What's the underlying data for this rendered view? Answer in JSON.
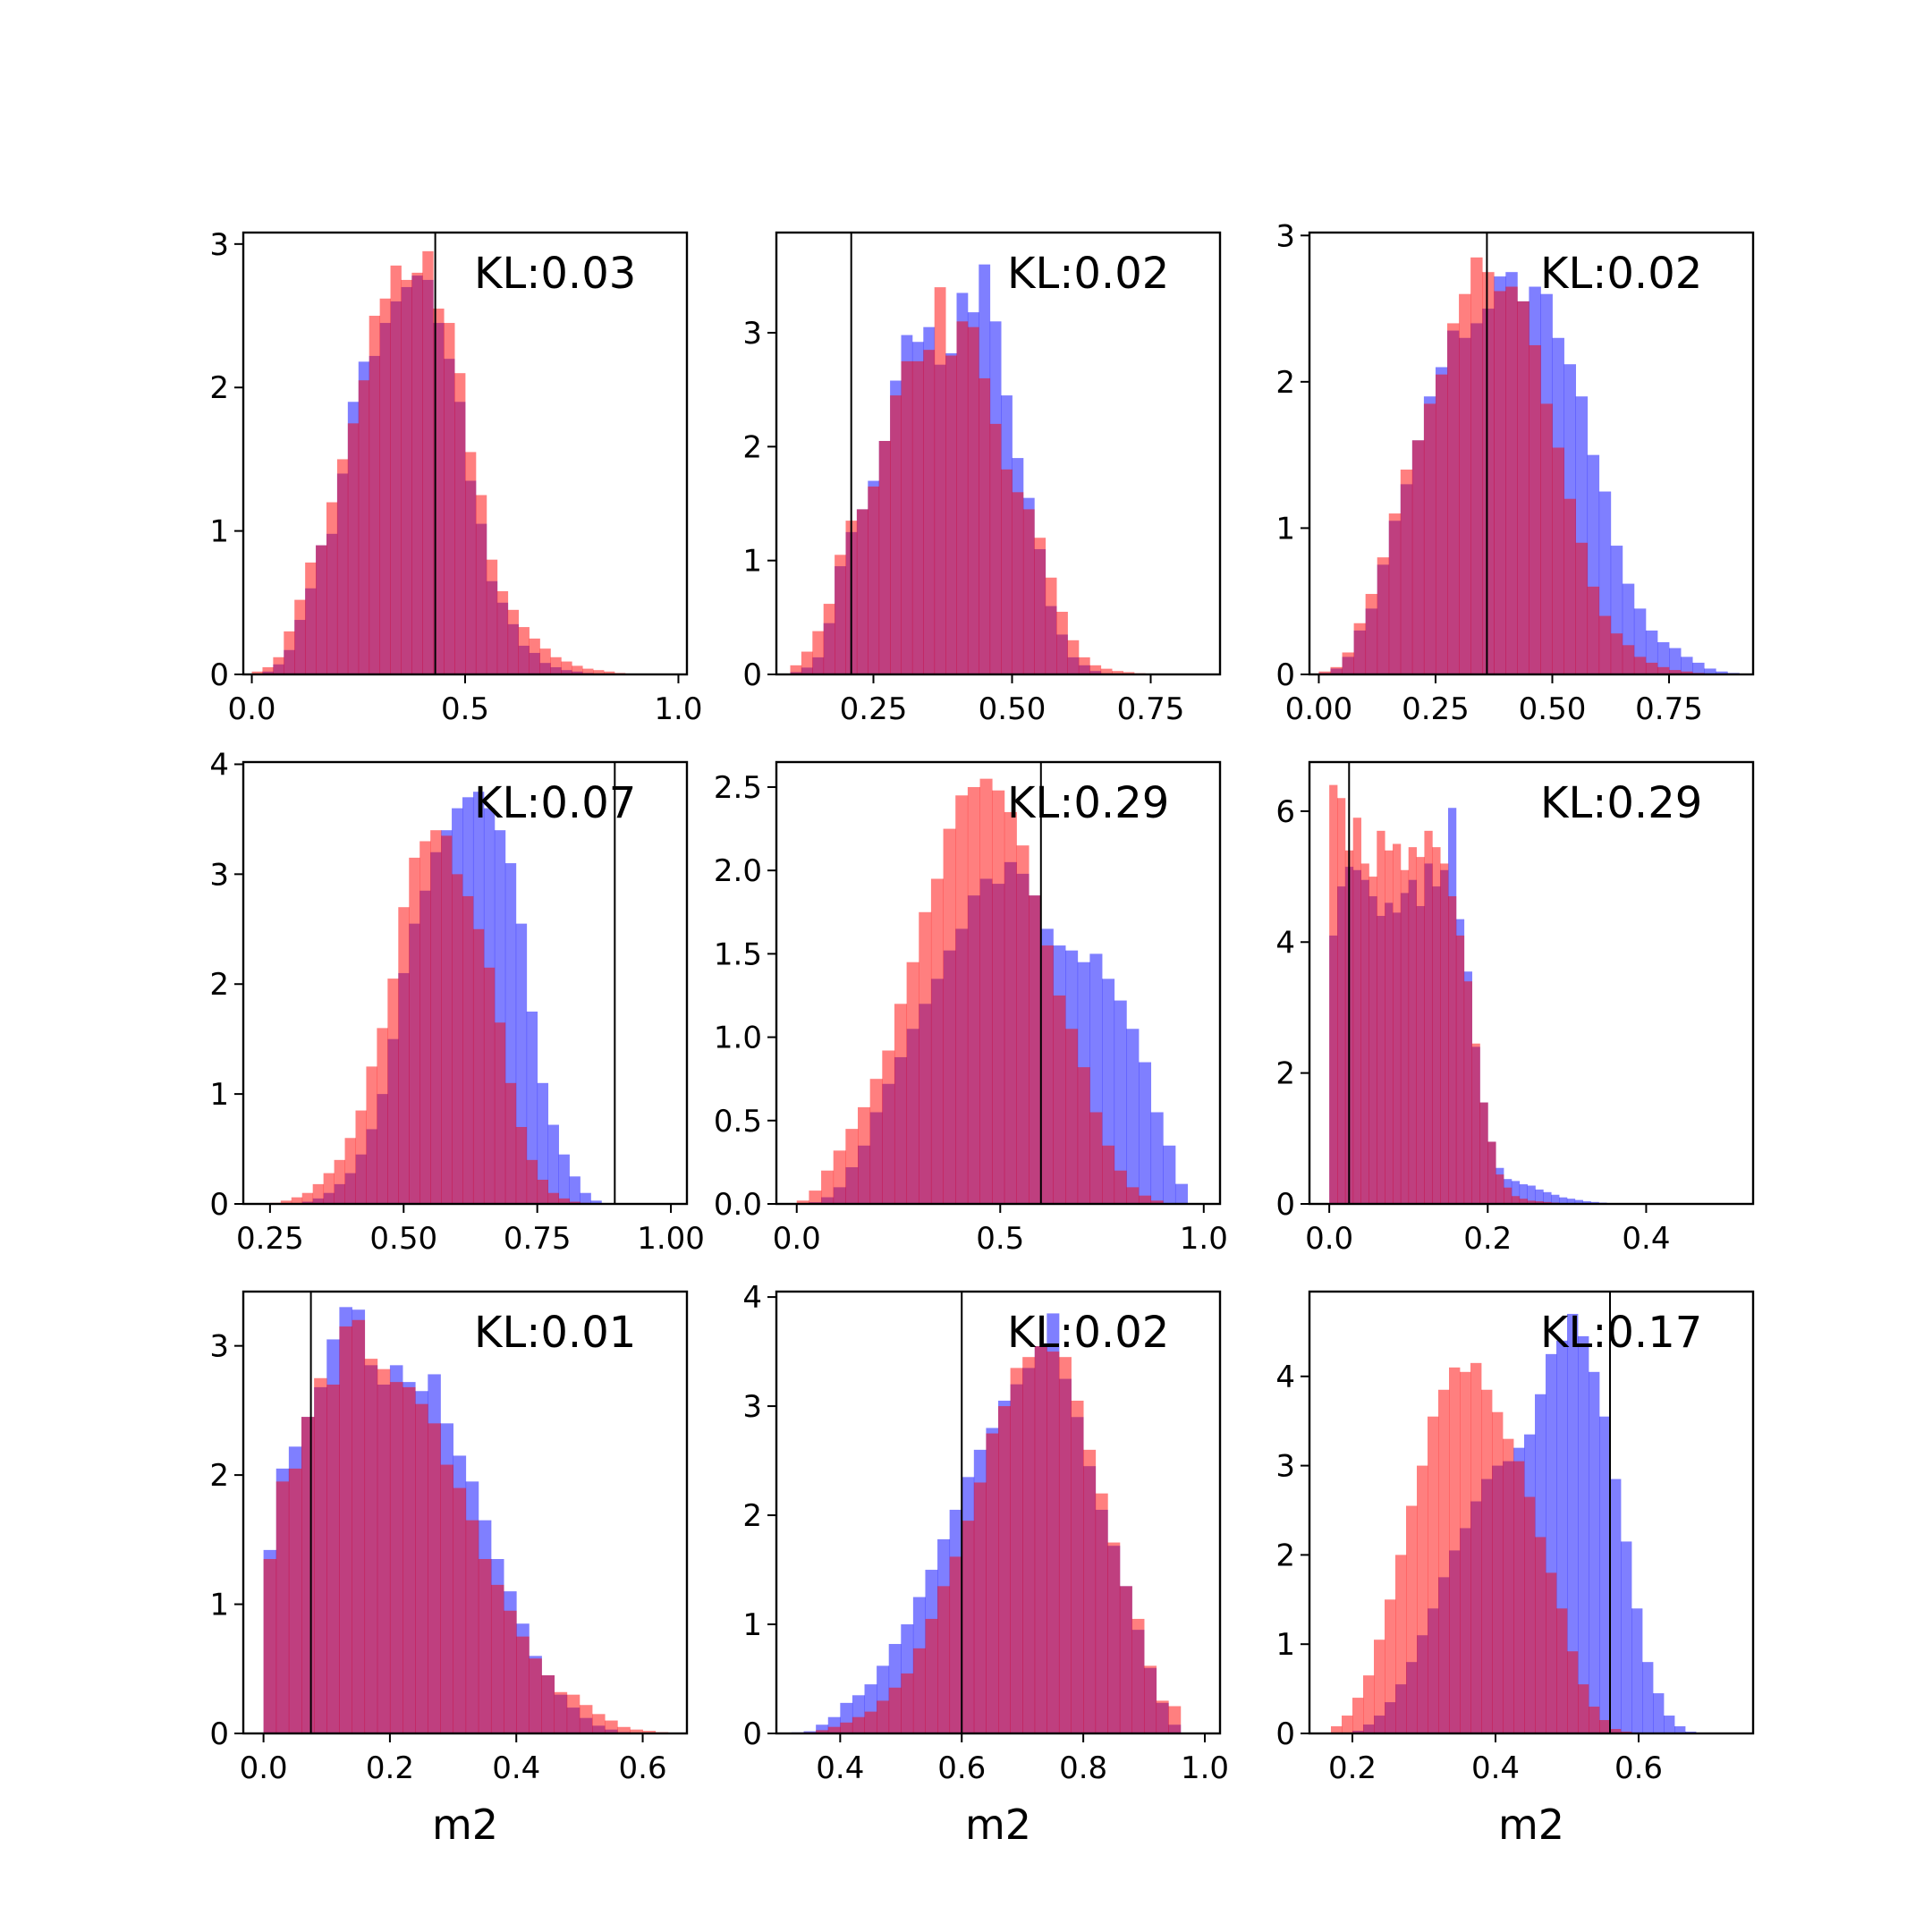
{
  "colors": {
    "blue": "#0000ff",
    "red": "#ff0000",
    "bar_opacity": 0.5,
    "axis": "#000000",
    "marker": "#000000"
  },
  "chart_data": [
    {
      "type": "histogram",
      "annotation": "KL:0.03",
      "xlabel": "",
      "xlim": [
        -0.02,
        1.02
      ],
      "ylim": [
        0,
        3.08
      ],
      "xticks": [
        0.0,
        0.5,
        1.0
      ],
      "xtick_labels": [
        "0.0",
        "0.5",
        "1.0"
      ],
      "yticks": [
        0,
        1,
        2,
        3
      ],
      "ytick_labels": [
        "0",
        "1",
        "2",
        "3"
      ],
      "vline": 0.43,
      "bins": {
        "start": 0.0,
        "width": 0.025,
        "blue": [
          0,
          0.02,
          0.07,
          0.17,
          0.38,
          0.6,
          0.9,
          0.98,
          1.4,
          1.9,
          2.18,
          2.22,
          2.45,
          2.6,
          2.7,
          2.78,
          2.75,
          2.45,
          2.2,
          1.9,
          1.35,
          1.05,
          0.65,
          0.5,
          0.35,
          0.2,
          0.15,
          0.08,
          0.05,
          0.03,
          0.02,
          0.01,
          0,
          0,
          0,
          0,
          0,
          0,
          0,
          0
        ],
        "red": [
          0.02,
          0.05,
          0.12,
          0.3,
          0.52,
          0.78,
          0.9,
          1.2,
          1.5,
          1.75,
          2.05,
          2.5,
          2.62,
          2.85,
          2.75,
          2.8,
          2.95,
          2.55,
          2.45,
          2.1,
          1.55,
          1.25,
          0.8,
          0.58,
          0.45,
          0.33,
          0.25,
          0.18,
          0.12,
          0.09,
          0.06,
          0.04,
          0.03,
          0.02,
          0.01,
          0,
          0,
          0,
          0,
          0
        ]
      }
    },
    {
      "type": "histogram",
      "annotation": "KL:0.02",
      "xlabel": "",
      "xlim": [
        0.075,
        0.875
      ],
      "ylim": [
        0,
        3.88
      ],
      "xticks": [
        0.25,
        0.5,
        0.75
      ],
      "xtick_labels": [
        "0.25",
        "0.50",
        "0.75"
      ],
      "yticks": [
        0,
        1,
        2,
        3
      ],
      "ytick_labels": [
        "0",
        "1",
        "2",
        "3"
      ],
      "vline": 0.21,
      "bins": {
        "start": 0.1,
        "width": 0.02,
        "blue": [
          0.02,
          0.06,
          0.15,
          0.45,
          0.95,
          1.25,
          1.45,
          1.7,
          2.05,
          2.58,
          2.98,
          2.92,
          3.05,
          2.72,
          2.82,
          3.35,
          3.18,
          3.6,
          3.1,
          2.45,
          1.9,
          1.55,
          1.1,
          0.6,
          0.35,
          0.15,
          0.08,
          0.03,
          0.01,
          0,
          0,
          0,
          0,
          0,
          0,
          0,
          0,
          0,
          0
        ],
        "red": [
          0.08,
          0.2,
          0.38,
          0.62,
          1.05,
          1.35,
          1.45,
          1.65,
          2.05,
          2.45,
          2.75,
          2.75,
          2.85,
          3.4,
          2.8,
          3.1,
          3.05,
          2.6,
          2.2,
          1.8,
          1.6,
          1.45,
          1.2,
          0.85,
          0.55,
          0.3,
          0.15,
          0.08,
          0.05,
          0.03,
          0.02,
          0.01,
          0,
          0,
          0,
          0,
          0,
          0,
          0
        ]
      }
    },
    {
      "type": "histogram",
      "annotation": "KL:0.02",
      "xlabel": "",
      "xlim": [
        -0.02,
        0.93
      ],
      "ylim": [
        0,
        3.02
      ],
      "xticks": [
        0.0,
        0.25,
        0.5,
        0.75
      ],
      "xtick_labels": [
        "0.00",
        "0.25",
        "0.50",
        "0.75"
      ],
      "yticks": [
        0,
        1,
        2,
        3
      ],
      "ytick_labels": [
        "0",
        "1",
        "2",
        "3"
      ],
      "vline": 0.36,
      "bins": {
        "start": 0.0,
        "width": 0.025,
        "blue": [
          0.01,
          0.04,
          0.12,
          0.3,
          0.45,
          0.75,
          1.05,
          1.3,
          1.6,
          1.9,
          2.1,
          2.35,
          2.3,
          2.4,
          2.5,
          2.72,
          2.75,
          2.55,
          2.65,
          2.6,
          2.3,
          2.12,
          1.9,
          1.5,
          1.25,
          0.88,
          0.62,
          0.45,
          0.3,
          0.22,
          0.18,
          0.12,
          0.08,
          0.04,
          0.02,
          0.01,
          0,
          0,
          0,
          0
        ],
        "red": [
          0.02,
          0.05,
          0.15,
          0.35,
          0.55,
          0.8,
          1.1,
          1.4,
          1.6,
          1.85,
          2.05,
          2.4,
          2.6,
          2.85,
          2.75,
          2.62,
          2.65,
          2.55,
          2.25,
          1.85,
          1.55,
          1.2,
          0.9,
          0.6,
          0.4,
          0.28,
          0.2,
          0.12,
          0.08,
          0.05,
          0.03,
          0.02,
          0.01,
          0,
          0,
          0,
          0,
          0,
          0,
          0
        ]
      }
    },
    {
      "type": "histogram",
      "annotation": "KL:0.07",
      "xlabel": "",
      "xlim": [
        0.2,
        1.03
      ],
      "ylim": [
        0,
        4.02
      ],
      "xticks": [
        0.25,
        0.5,
        0.75,
        1.0
      ],
      "xtick_labels": [
        "0.25",
        "0.50",
        "0.75",
        "1.00"
      ],
      "yticks": [
        0,
        1,
        2,
        3,
        4
      ],
      "ytick_labels": [
        "0",
        "1",
        "2",
        "3",
        "4"
      ],
      "vline": 0.895,
      "bins": {
        "start": 0.25,
        "width": 0.02,
        "blue": [
          0,
          0,
          0,
          0.02,
          0.05,
          0.1,
          0.18,
          0.28,
          0.45,
          0.68,
          1.0,
          1.5,
          2.1,
          2.55,
          2.85,
          3.2,
          3.4,
          3.6,
          3.7,
          3.75,
          3.6,
          3.4,
          3.1,
          2.55,
          1.75,
          1.1,
          0.72,
          0.45,
          0.25,
          0.1,
          0.03,
          0,
          0,
          0,
          0,
          0,
          0,
          0,
          0,
          0
        ],
        "red": [
          0.01,
          0.03,
          0.06,
          0.1,
          0.18,
          0.28,
          0.4,
          0.6,
          0.85,
          1.25,
          1.6,
          2.05,
          2.7,
          3.15,
          3.3,
          3.4,
          3.35,
          3.0,
          2.8,
          2.5,
          2.15,
          1.65,
          1.1,
          0.7,
          0.4,
          0.22,
          0.1,
          0.05,
          0.02,
          0.01,
          0,
          0,
          0,
          0,
          0,
          0,
          0,
          0,
          0,
          0
        ]
      }
    },
    {
      "type": "histogram",
      "annotation": "KL:0.29",
      "xlabel": "",
      "xlim": [
        -0.05,
        1.04
      ],
      "ylim": [
        0,
        2.65
      ],
      "xticks": [
        0.0,
        0.5,
        1.0
      ],
      "xtick_labels": [
        "0.0",
        "0.5",
        "1.0"
      ],
      "yticks": [
        0,
        0.5,
        1.0,
        1.5,
        2.0,
        2.5
      ],
      "ytick_labels": [
        "0.0",
        "0.5",
        "1.0",
        "1.5",
        "2.0",
        "2.5"
      ],
      "vline": 0.6,
      "bins": {
        "start": 0.0,
        "width": 0.03,
        "blue": [
          0,
          0.01,
          0.04,
          0.1,
          0.22,
          0.35,
          0.55,
          0.72,
          0.88,
          1.05,
          1.2,
          1.35,
          1.52,
          1.65,
          1.85,
          1.95,
          1.92,
          2.05,
          1.98,
          1.85,
          1.65,
          1.55,
          1.52,
          1.45,
          1.5,
          1.35,
          1.22,
          1.05,
          0.85,
          0.55,
          0.35,
          0.12,
          0,
          0,
          0,
          0,
          0,
          0,
          0,
          0
        ],
        "red": [
          0.02,
          0.08,
          0.2,
          0.32,
          0.45,
          0.58,
          0.75,
          0.92,
          1.2,
          1.45,
          1.75,
          1.95,
          2.25,
          2.45,
          2.5,
          2.55,
          2.48,
          2.35,
          2.15,
          1.85,
          1.55,
          1.25,
          1.05,
          0.82,
          0.55,
          0.35,
          0.2,
          0.1,
          0.05,
          0.02,
          0,
          0,
          0,
          0,
          0,
          0,
          0,
          0,
          0,
          0
        ]
      }
    },
    {
      "type": "histogram",
      "annotation": "KL:0.29",
      "xlabel": "",
      "xlim": [
        -0.025,
        0.535
      ],
      "ylim": [
        0,
        6.75
      ],
      "xticks": [
        0.0,
        0.2,
        0.4
      ],
      "xtick_labels": [
        "0.0",
        "0.2",
        "0.4"
      ],
      "yticks": [
        0,
        2,
        4,
        6
      ],
      "ytick_labels": [
        "0",
        "2",
        "4",
        "6"
      ],
      "vline": 0.025,
      "bins": {
        "start": 0.0,
        "width": 0.01,
        "blue": [
          4.1,
          4.85,
          5.15,
          5.1,
          4.95,
          4.7,
          4.4,
          4.6,
          4.45,
          4.75,
          4.95,
          4.55,
          5.2,
          4.85,
          5.1,
          6.05,
          4.35,
          3.55,
          2.4,
          1.55,
          0.95,
          0.55,
          0.38,
          0.35,
          0.3,
          0.28,
          0.22,
          0.18,
          0.14,
          0.1,
          0.08,
          0.06,
          0.04,
          0.03,
          0.02,
          0.01,
          0,
          0,
          0,
          0
        ],
        "red": [
          6.4,
          6.2,
          5.4,
          5.9,
          5.2,
          5.0,
          5.7,
          5.4,
          5.5,
          5.1,
          5.45,
          5.3,
          5.7,
          5.45,
          5.2,
          4.7,
          4.1,
          3.4,
          2.45,
          1.55,
          0.95,
          0.45,
          0.25,
          0.12,
          0.08,
          0.05,
          0.04,
          0.03,
          0.02,
          0.01,
          0,
          0,
          0,
          0,
          0,
          0,
          0,
          0,
          0,
          0
        ]
      }
    },
    {
      "type": "histogram",
      "annotation": "KL:0.01",
      "xlabel": "m2",
      "xlim": [
        -0.032,
        0.67
      ],
      "ylim": [
        0,
        3.42
      ],
      "xticks": [
        0.0,
        0.2,
        0.4,
        0.6
      ],
      "xtick_labels": [
        "0.0",
        "0.2",
        "0.4",
        "0.6"
      ],
      "yticks": [
        0,
        1,
        2,
        3
      ],
      "ytick_labels": [
        "0",
        "1",
        "2",
        "3"
      ],
      "vline": 0.075,
      "bins": {
        "start": 0.0,
        "width": 0.02,
        "blue": [
          1.42,
          2.05,
          2.22,
          2.45,
          2.68,
          3.05,
          3.3,
          3.28,
          2.85,
          2.7,
          2.85,
          2.72,
          2.65,
          2.78,
          2.4,
          2.15,
          1.95,
          1.65,
          1.35,
          1.1,
          0.85,
          0.6,
          0.45,
          0.3,
          0.2,
          0.12,
          0.06,
          0.03,
          0.01,
          0,
          0,
          0,
          0,
          0,
          0,
          0,
          0,
          0,
          0,
          0
        ],
        "red": [
          1.35,
          1.95,
          2.05,
          2.45,
          2.75,
          2.7,
          3.15,
          3.2,
          2.9,
          2.82,
          2.72,
          2.68,
          2.55,
          2.4,
          2.08,
          1.9,
          1.65,
          1.35,
          1.15,
          0.95,
          0.75,
          0.58,
          0.45,
          0.32,
          0.3,
          0.22,
          0.15,
          0.1,
          0.05,
          0.03,
          0.02,
          0.01,
          0,
          0,
          0,
          0,
          0,
          0,
          0,
          0
        ]
      }
    },
    {
      "type": "histogram",
      "annotation": "KL:0.02",
      "xlabel": "m2",
      "xlim": [
        0.295,
        1.025
      ],
      "ylim": [
        0,
        4.05
      ],
      "xticks": [
        0.4,
        0.6,
        0.8,
        1.0
      ],
      "xtick_labels": [
        "0.4",
        "0.6",
        "0.8",
        "1.0"
      ],
      "yticks": [
        0,
        1,
        2,
        3,
        4
      ],
      "ytick_labels": [
        "0",
        "1",
        "2",
        "3",
        "4"
      ],
      "vline": 0.6,
      "bins": {
        "start": 0.3,
        "width": 0.02,
        "blue": [
          0,
          0.01,
          0.02,
          0.08,
          0.15,
          0.28,
          0.35,
          0.45,
          0.62,
          0.82,
          1.0,
          1.25,
          1.5,
          1.78,
          2.05,
          2.35,
          2.6,
          2.8,
          3.05,
          3.2,
          3.35,
          3.55,
          3.85,
          3.25,
          2.9,
          2.45,
          2.05,
          1.72,
          1.35,
          0.95,
          0.6,
          0.28,
          0.08,
          0,
          0,
          0,
          0,
          0,
          0,
          0
        ],
        "red": [
          0,
          0,
          0.01,
          0.03,
          0.06,
          0.1,
          0.15,
          0.2,
          0.3,
          0.42,
          0.55,
          0.78,
          1.05,
          1.35,
          1.62,
          1.95,
          2.3,
          2.75,
          3.0,
          3.35,
          3.45,
          3.55,
          3.5,
          3.45,
          3.05,
          2.6,
          2.2,
          1.75,
          1.35,
          1.05,
          0.62,
          0.3,
          0.25,
          0,
          0,
          0,
          0,
          0,
          0,
          0
        ]
      }
    },
    {
      "type": "histogram",
      "annotation": "KL:0.17",
      "xlabel": "m2",
      "xlim": [
        0.14,
        0.76
      ],
      "ylim": [
        0,
        4.95
      ],
      "xticks": [
        0.2,
        0.4,
        0.6
      ],
      "xtick_labels": [
        "0.2",
        "0.4",
        "0.6"
      ],
      "yticks": [
        0,
        1,
        2,
        3,
        4
      ],
      "ytick_labels": [
        "0",
        "1",
        "2",
        "3",
        "4"
      ],
      "vline": 0.56,
      "bins": {
        "start": 0.17,
        "width": 0.015,
        "blue": [
          0,
          0.01,
          0.03,
          0.1,
          0.2,
          0.35,
          0.55,
          0.8,
          1.1,
          1.4,
          1.75,
          2.05,
          2.3,
          2.6,
          2.85,
          3.0,
          3.05,
          3.2,
          3.35,
          3.8,
          4.25,
          4.4,
          4.7,
          4.45,
          4.05,
          3.55,
          2.85,
          2.15,
          1.4,
          0.8,
          0.45,
          0.2,
          0.08,
          0.02,
          0,
          0,
          0,
          0,
          0,
          0
        ],
        "red": [
          0.08,
          0.2,
          0.4,
          0.65,
          1.05,
          1.5,
          2.0,
          2.55,
          3.0,
          3.55,
          3.85,
          4.1,
          4.05,
          4.15,
          3.85,
          3.6,
          3.3,
          3.05,
          2.65,
          2.2,
          1.8,
          1.4,
          0.92,
          0.55,
          0.3,
          0.15,
          0.05,
          0.02,
          0,
          0,
          0,
          0,
          0,
          0,
          0,
          0,
          0,
          0,
          0,
          0
        ]
      }
    }
  ]
}
